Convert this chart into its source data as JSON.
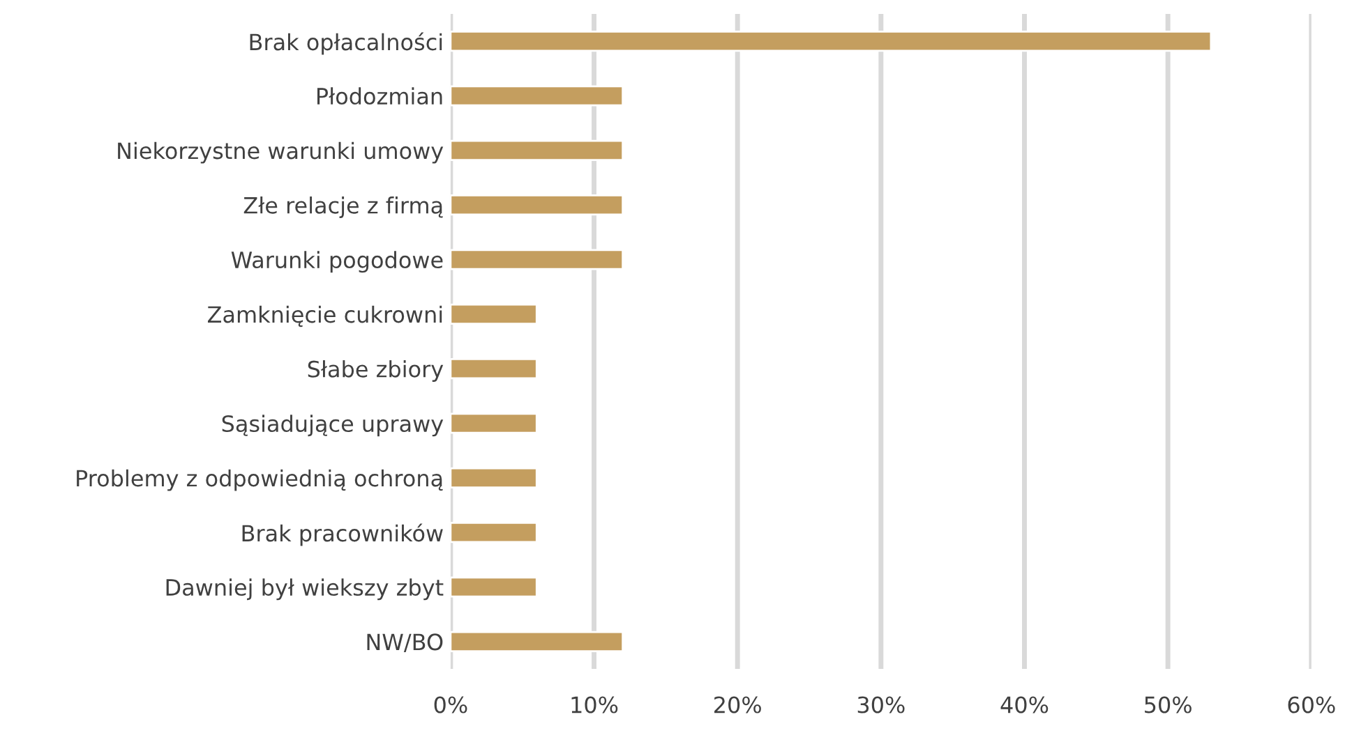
{
  "chart_data": {
    "type": "bar",
    "orientation": "horizontal",
    "categories": [
      "Brak opłacalności",
      "Płodozmian",
      "Niekorzystne warunki umowy",
      "Złe relacje z firmą",
      "Warunki pogodowe",
      "Zamknięcie cukrowni",
      "Słabe zbiory",
      "Sąsiadujące uprawy",
      "Problemy z odpowiednią ochroną",
      "Brak pracowników",
      "Dawniej był wiekszy zbyt",
      "NW/BO"
    ],
    "values": [
      53,
      12,
      12,
      12,
      12,
      6,
      6,
      6,
      6,
      6,
      6,
      12
    ],
    "color": "#c49e5f",
    "xlim": [
      0,
      60
    ],
    "xticks": [
      {
        "value": 0,
        "label": "0%"
      },
      {
        "value": 10,
        "label": "10%"
      },
      {
        "value": 20,
        "label": "20%"
      },
      {
        "value": 30,
        "label": "30%"
      },
      {
        "value": 40,
        "label": "40%"
      },
      {
        "value": 50,
        "label": "50%"
      },
      {
        "value": 60,
        "label": "60%"
      }
    ],
    "grid": "x",
    "legend": false
  }
}
